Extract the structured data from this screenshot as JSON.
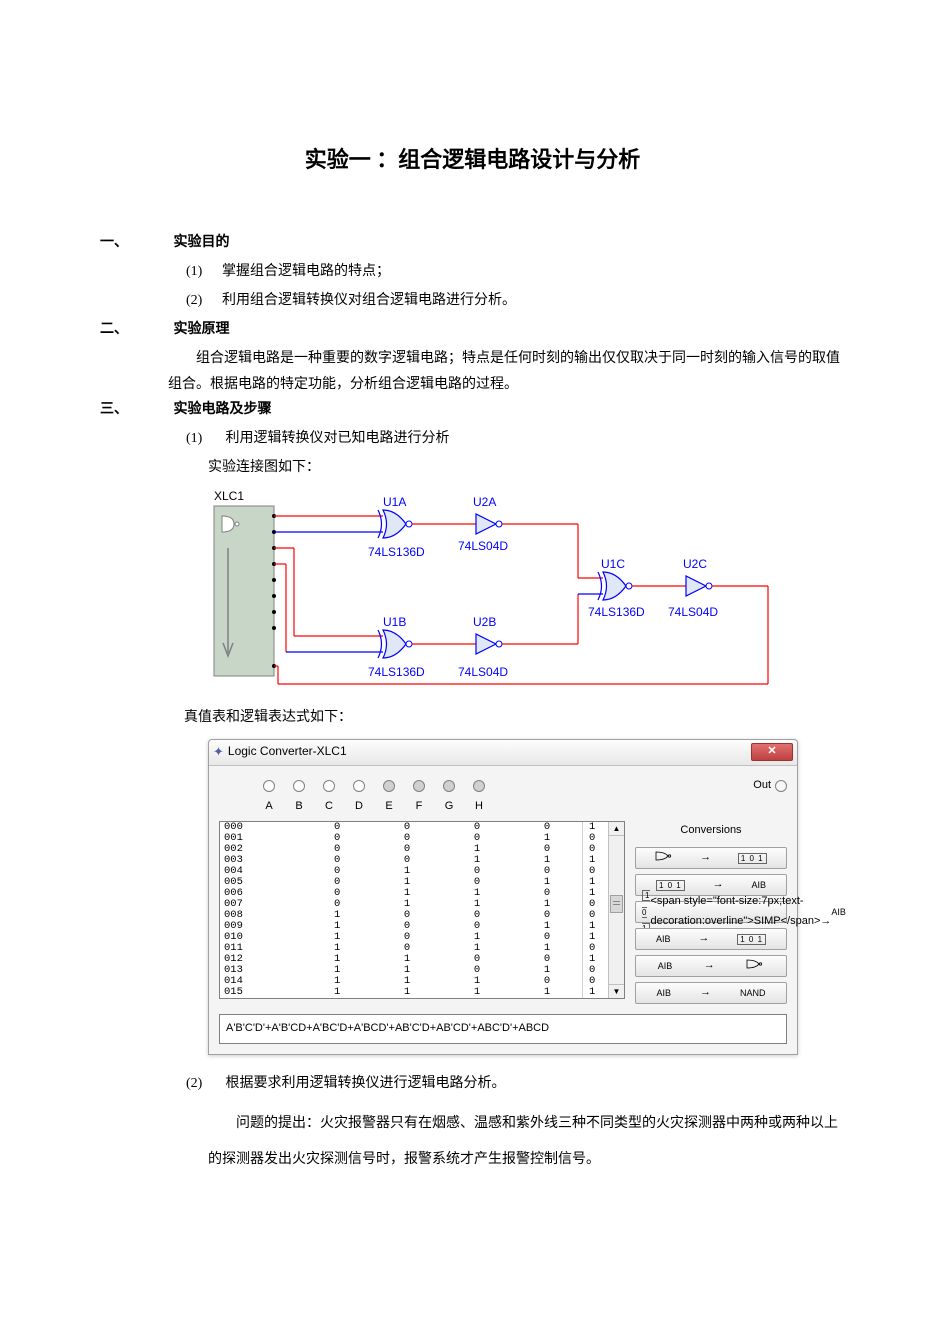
{
  "page": {
    "title": "实验一 ：组合逻辑电路设计与分析"
  },
  "section1": {
    "label": "一、",
    "title": "实验目的",
    "items": [
      {
        "num": "(1)",
        "text": "掌握组合逻辑电路的特点；"
      },
      {
        "num": "(2)",
        "text": "利用组合逻辑转换仪对组合逻辑电路进行分析。"
      }
    ]
  },
  "section2": {
    "label": "二、",
    "title": "实验原理",
    "para": "组合逻辑电路是一种重要的数字逻辑电路；特点是任何时刻的输出仅仅取决于同一时刻的输入信号的取值组合。根据电路的特定功能，分析组合逻辑电路的过程。"
  },
  "section3": {
    "label": "三、",
    "title": "实验电路及步骤",
    "step1": {
      "num": "(1)",
      "text": "利用逻辑转换仪对已知电路进行分析",
      "caption": "实验连接图如下："
    },
    "tt_caption": "真值表和逻辑表达式如下：",
    "step2": {
      "num": "(2)",
      "text": "根据要求利用逻辑转换仪进行逻辑电路分析。",
      "para": "问题的提出：火灾报警器只有在烟感、温感和紫外线三种不同类型的火灾探测器中两种或两种以上的探测器发出火灾探测信号时，报警系统才产生报警控制信号。"
    }
  },
  "circuit": {
    "xlc_label": "XLC1",
    "gates": {
      "u1a": {
        "label": "U1A",
        "sub": "74LS136D"
      },
      "u2a": {
        "label": "U2A",
        "sub": "74LS04D"
      },
      "u1b": {
        "label": "U1B",
        "sub": "74LS136D"
      },
      "u2b": {
        "label": "U2B",
        "sub": "74LS04D"
      },
      "u1c": {
        "label": "U1C",
        "sub": "74LS136D"
      },
      "u2c": {
        "label": "U2C",
        "sub": "74LS04D"
      }
    },
    "colors": {
      "blue": "#0000ff",
      "red": "#ff0000",
      "box_fill": "#c8d6c8",
      "box_border": "#808080"
    }
  },
  "converter": {
    "title": "Logic Converter-XLC1",
    "out_label": "Out",
    "conversions_label": "Conversions",
    "headers": [
      "A",
      "B",
      "C",
      "D",
      "E",
      "F",
      "G",
      "H"
    ],
    "rows": [
      {
        "idx": "000",
        "a": "0",
        "b": "0",
        "c": "0",
        "d": "0",
        "out": "1"
      },
      {
        "idx": "001",
        "a": "0",
        "b": "0",
        "c": "0",
        "d": "1",
        "out": "0"
      },
      {
        "idx": "002",
        "a": "0",
        "b": "0",
        "c": "1",
        "d": "0",
        "out": "0"
      },
      {
        "idx": "003",
        "a": "0",
        "b": "0",
        "c": "1",
        "d": "1",
        "out": "1"
      },
      {
        "idx": "004",
        "a": "0",
        "b": "1",
        "c": "0",
        "d": "0",
        "out": "0"
      },
      {
        "idx": "005",
        "a": "0",
        "b": "1",
        "c": "0",
        "d": "1",
        "out": "1"
      },
      {
        "idx": "006",
        "a": "0",
        "b": "1",
        "c": "1",
        "d": "0",
        "out": "1"
      },
      {
        "idx": "007",
        "a": "0",
        "b": "1",
        "c": "1",
        "d": "1",
        "out": "0"
      },
      {
        "idx": "008",
        "a": "1",
        "b": "0",
        "c": "0",
        "d": "0",
        "out": "0"
      },
      {
        "idx": "009",
        "a": "1",
        "b": "0",
        "c": "0",
        "d": "1",
        "out": "1"
      },
      {
        "idx": "010",
        "a": "1",
        "b": "0",
        "c": "1",
        "d": "0",
        "out": "1"
      },
      {
        "idx": "011",
        "a": "1",
        "b": "0",
        "c": "1",
        "d": "1",
        "out": "0"
      },
      {
        "idx": "012",
        "a": "1",
        "b": "1",
        "c": "0",
        "d": "0",
        "out": "1"
      },
      {
        "idx": "013",
        "a": "1",
        "b": "1",
        "c": "0",
        "d": "1",
        "out": "0"
      },
      {
        "idx": "014",
        "a": "1",
        "b": "1",
        "c": "1",
        "d": "0",
        "out": "0"
      },
      {
        "idx": "015",
        "a": "1",
        "b": "1",
        "c": "1",
        "d": "1",
        "out": "1"
      }
    ],
    "expression": "A'B'C'D'+A'B'CD+A'BC'D+A'BCD'+AB'C'D+AB'CD'+ABC'D'+ABCD",
    "btn_labels": {
      "simp": "SIMP",
      "aib": "AIB",
      "nand": "NAND",
      "tt": "101"
    },
    "colors": {
      "bg": "#f0f0f0",
      "border": "#a0a0a0",
      "dark_border": "#808080",
      "close_bg": "#c75050",
      "table_bg": "#ffffff"
    }
  }
}
